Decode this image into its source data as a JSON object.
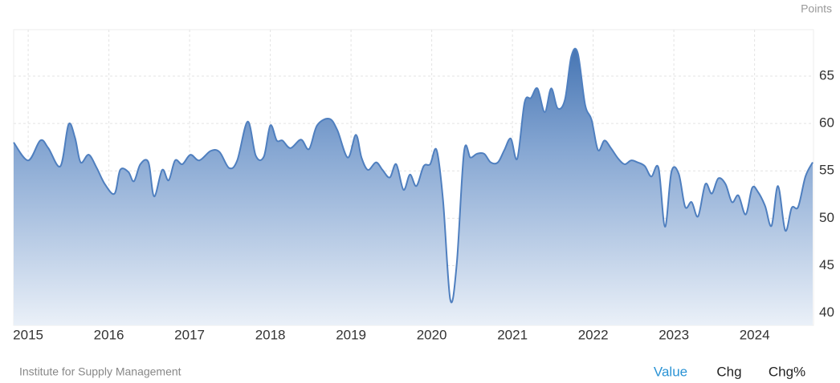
{
  "chart_data": {
    "type": "area",
    "y_axis_label": "Points",
    "x": [
      2014.82,
      2015.0,
      2015.15,
      2015.25,
      2015.4,
      2015.5,
      2015.58,
      2015.65,
      2015.75,
      2015.85,
      2015.95,
      2016.07,
      2016.14,
      2016.24,
      2016.31,
      2016.39,
      2016.49,
      2016.56,
      2016.66,
      2016.74,
      2016.82,
      2016.91,
      2017.01,
      2017.12,
      2017.26,
      2017.37,
      2017.49,
      2017.59,
      2017.72,
      2017.82,
      2017.92,
      2018.0,
      2018.08,
      2018.15,
      2018.25,
      2018.38,
      2018.48,
      2018.58,
      2018.73,
      2018.83,
      2018.96,
      2019.06,
      2019.13,
      2019.21,
      2019.31,
      2019.39,
      2019.48,
      2019.56,
      2019.65,
      2019.73,
      2019.81,
      2019.9,
      2019.98,
      2020.06,
      2020.14,
      2020.23,
      2020.31,
      2020.4,
      2020.48,
      2020.56,
      2020.65,
      2020.73,
      2020.82,
      2020.9,
      2020.98,
      2021.06,
      2021.15,
      2021.23,
      2021.31,
      2021.4,
      2021.48,
      2021.56,
      2021.65,
      2021.73,
      2021.81,
      2021.9,
      2021.98,
      2022.06,
      2022.14,
      2022.22,
      2022.31,
      2022.39,
      2022.47,
      2022.55,
      2022.64,
      2022.72,
      2022.81,
      2022.89,
      2022.97,
      2023.06,
      2023.14,
      2023.22,
      2023.3,
      2023.39,
      2023.47,
      2023.55,
      2023.64,
      2023.72,
      2023.8,
      2023.89,
      2023.97,
      2024.04,
      2024.13,
      2024.21,
      2024.29,
      2024.38,
      2024.46,
      2024.54,
      2024.63,
      2024.72
    ],
    "series": [
      {
        "name": "Value",
        "color": "#4f7fbf",
        "values": [
          58.0,
          56.1,
          58.2,
          57.4,
          55.5,
          59.9,
          58.5,
          55.9,
          56.7,
          55.3,
          53.6,
          52.6,
          55.1,
          54.9,
          53.9,
          55.7,
          55.9,
          52.3,
          55.1,
          54.0,
          56.1,
          55.7,
          56.7,
          56.1,
          57.1,
          57.0,
          55.3,
          56.1,
          60.2,
          56.6,
          56.5,
          59.8,
          58.2,
          58.2,
          57.4,
          58.3,
          57.3,
          59.8,
          60.5,
          59.3,
          56.4,
          58.8,
          56.4,
          55.1,
          55.9,
          55.1,
          54.3,
          55.7,
          53.0,
          54.6,
          53.4,
          55.5,
          55.7,
          57.2,
          51.9,
          41.4,
          45.2,
          57.0,
          56.4,
          56.8,
          56.8,
          55.9,
          55.9,
          57.2,
          58.4,
          56.3,
          62.2,
          62.7,
          63.7,
          61.2,
          63.7,
          61.6,
          62.5,
          67.1,
          67.4,
          62.0,
          60.4,
          57.2,
          58.2,
          57.4,
          56.3,
          55.7,
          56.1,
          55.9,
          55.5,
          54.4,
          55.3,
          49.1,
          54.9,
          54.7,
          51.2,
          51.7,
          50.2,
          53.6,
          52.6,
          54.2,
          53.6,
          51.7,
          52.4,
          50.4,
          53.2,
          52.8,
          51.3,
          49.2,
          53.4,
          48.7,
          51.1,
          51.2,
          54.4,
          55.9
        ]
      }
    ],
    "xlim": [
      2014.82,
      2024.73
    ],
    "xticks": [
      2015,
      2016,
      2017,
      2018,
      2019,
      2020,
      2021,
      2022,
      2023,
      2024
    ],
    "ylim": [
      38.7,
      69.9
    ],
    "yticks": [
      40,
      45,
      50,
      55,
      60,
      65
    ],
    "grid": true
  },
  "footer": {
    "source": "Institute for Supply Management",
    "buttons": [
      "Value",
      "Chg",
      "Chg%"
    ]
  }
}
